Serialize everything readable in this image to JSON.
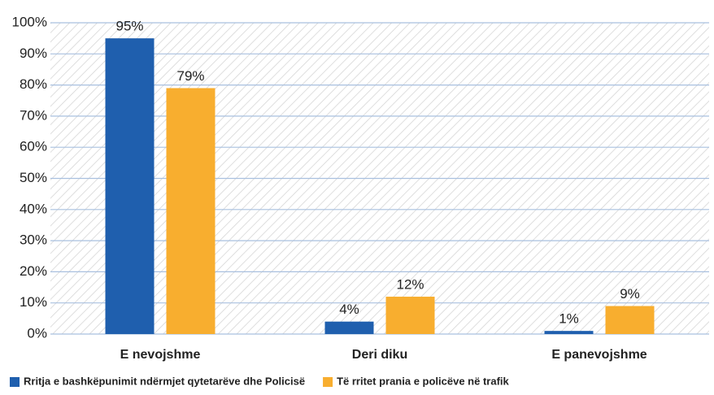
{
  "chart_data": {
    "type": "bar",
    "categories": [
      "E nevojshme",
      "Deri diku",
      "E panevojshme"
    ],
    "series": [
      {
        "name": "Rritja e bashkëpunimit ndërmjet qytetarëve dhe Policisë",
        "color": "#1f5fae",
        "values": [
          95,
          4,
          1
        ],
        "value_labels": [
          "95%",
          "4%",
          "1%"
        ]
      },
      {
        "name": "Të rritet prania e policëve në trafik",
        "color": "#f8ae2f",
        "values": [
          79,
          12,
          9
        ],
        "value_labels": [
          "79%",
          "12%",
          "9%"
        ]
      }
    ],
    "ylim": [
      0,
      100
    ],
    "yticks": [
      {
        "value": 0,
        "label": "0%"
      },
      {
        "value": 10,
        "label": "10%"
      },
      {
        "value": 20,
        "label": "20%"
      },
      {
        "value": 30,
        "label": "30%"
      },
      {
        "value": 40,
        "label": "40%"
      },
      {
        "value": 50,
        "label": "50%"
      },
      {
        "value": 60,
        "label": "60%"
      },
      {
        "value": 70,
        "label": "70%"
      },
      {
        "value": 80,
        "label": "80%"
      },
      {
        "value": 90,
        "label": "90%"
      },
      {
        "value": 100,
        "label": "100%"
      }
    ],
    "grid": true,
    "legend": "bottom"
  }
}
